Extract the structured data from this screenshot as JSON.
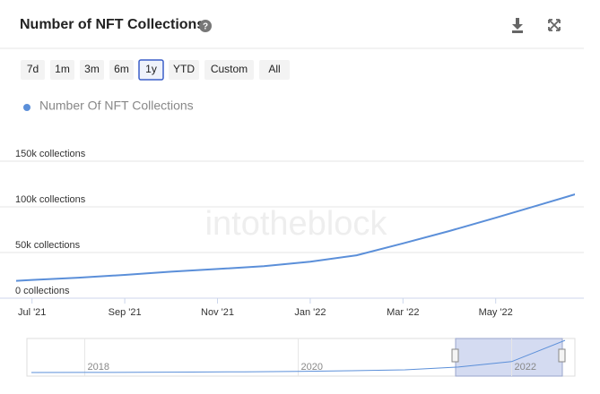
{
  "title": "Number of NFT Collections",
  "range_buttons": [
    "7d",
    "1m",
    "3m",
    "6m",
    "1y",
    "YTD",
    "Custom",
    "All"
  ],
  "selected_range": "1y",
  "watermark": "intotheblock",
  "chart_data": {
    "type": "line",
    "x": [
      "2021-06",
      "2021-07",
      "2021-08",
      "2021-09",
      "2021-10",
      "2021-11",
      "2021-12",
      "2022-01",
      "2022-02",
      "2022-03",
      "2022-04",
      "2022-05",
      "2022-06",
      "2022-07"
    ],
    "xlim": [
      "2021-06",
      "2022-07"
    ],
    "xticks": [
      {
        "value": "2021-07",
        "label": "Jul '21"
      },
      {
        "value": "2021-09",
        "label": "Sep '21"
      },
      {
        "value": "2021-11",
        "label": "Nov '21"
      },
      {
        "value": "2022-01",
        "label": "Jan '22"
      },
      {
        "value": "2022-03",
        "label": "Mar '22"
      },
      {
        "value": "2022-05",
        "label": "May '22"
      }
    ],
    "series": [
      {
        "name": "Number Of NFT Collections",
        "color": "#5b8fd9",
        "values": [
          17000,
          20000,
          22500,
          25500,
          29000,
          32000,
          35000,
          40000,
          47000,
          60000,
          73500,
          88000,
          103000,
          118000
        ]
      }
    ],
    "ylim": [
      0,
      150000
    ],
    "yticks": [
      {
        "value": 0,
        "label": "0 collections"
      },
      {
        "value": 50000,
        "label": "50k collections"
      },
      {
        "value": 100000,
        "label": "100k collections"
      },
      {
        "value": 150000,
        "label": "150k collections"
      }
    ],
    "grid": true,
    "navigator": {
      "x": [
        "2017-07",
        "2018-01",
        "2018-07",
        "2019-01",
        "2019-07",
        "2020-01",
        "2020-07",
        "2021-01",
        "2021-07",
        "2022-01",
        "2022-07"
      ],
      "xlim": [
        "2017-07",
        "2022-07"
      ],
      "values": [
        0,
        300,
        800,
        1500,
        2500,
        4000,
        6500,
        10000,
        20000,
        40000,
        118000
      ],
      "xticks": [
        {
          "value": "2018-01",
          "label": "2018"
        },
        {
          "value": "2020-01",
          "label": "2020"
        },
        {
          "value": "2022-01",
          "label": "2022"
        }
      ]
    }
  }
}
